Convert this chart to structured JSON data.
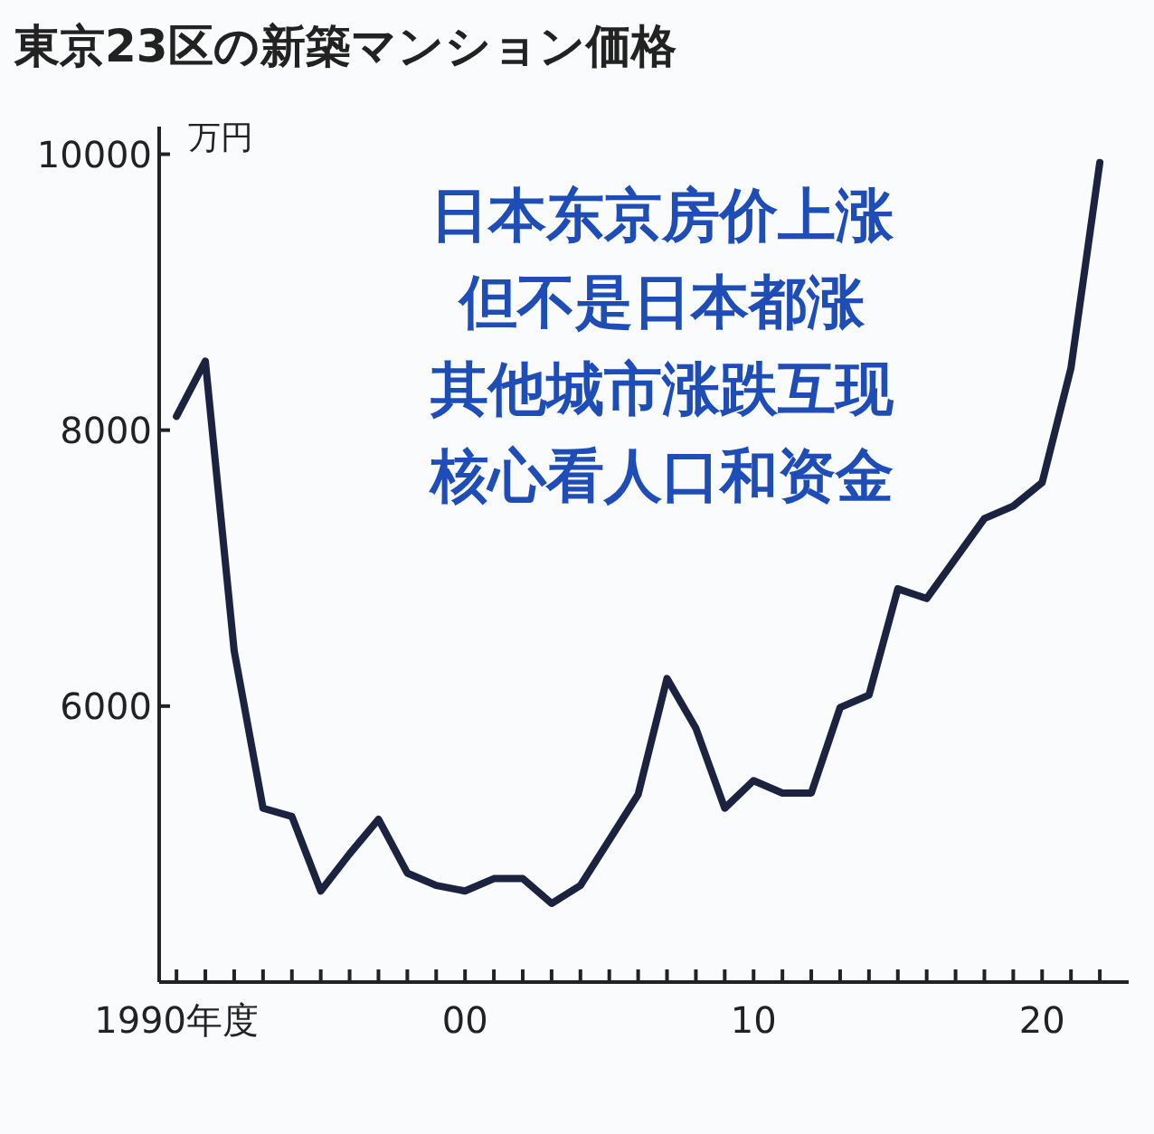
{
  "chart_data": {
    "type": "line",
    "title": "東京23区の新築マンション価格",
    "ylabel": "万円",
    "annotations": [
      "日本东京房价上涨",
      "但不是日本都涨",
      "其他城市涨跌互现",
      "核心看人口和资金"
    ],
    "x": [
      1990,
      1991,
      1992,
      1993,
      1994,
      1995,
      1996,
      1997,
      1998,
      1999,
      2000,
      2001,
      2002,
      2003,
      2004,
      2005,
      2006,
      2007,
      2008,
      2009,
      2010,
      2011,
      2012,
      2013,
      2014,
      2015,
      2016,
      2017,
      2018,
      2019,
      2020,
      2021,
      2022
    ],
    "series": [
      {
        "color": "#1c2340",
        "values": [
          8100,
          8500,
          6400,
          5260,
          5200,
          4660,
          4930,
          5180,
          4790,
          4700,
          4660,
          4750,
          4750,
          4570,
          4700,
          5030,
          5360,
          6200,
          5840,
          5260,
          5460,
          5370,
          5370,
          5990,
          6080,
          6850,
          6780,
          7070,
          7360,
          7450,
          7620,
          8450,
          9940
        ]
      }
    ],
    "xlim": [
      1989.4,
      2023
    ],
    "ylim": [
      4000,
      10200
    ],
    "xticks": [
      {
        "value": 1990,
        "label": "1990年度"
      },
      {
        "value": 1991,
        "label": null
      },
      {
        "value": 1992,
        "label": null
      },
      {
        "value": 1993,
        "label": null
      },
      {
        "value": 1994,
        "label": null
      },
      {
        "value": 1995,
        "label": null
      },
      {
        "value": 1996,
        "label": null
      },
      {
        "value": 1997,
        "label": null
      },
      {
        "value": 1998,
        "label": null
      },
      {
        "value": 1999,
        "label": null
      },
      {
        "value": 2000,
        "label": "00"
      },
      {
        "value": 2001,
        "label": null
      },
      {
        "value": 2002,
        "label": null
      },
      {
        "value": 2003,
        "label": null
      },
      {
        "value": 2004,
        "label": null
      },
      {
        "value": 2005,
        "label": null
      },
      {
        "value": 2006,
        "label": null
      },
      {
        "value": 2007,
        "label": null
      },
      {
        "value": 2008,
        "label": null
      },
      {
        "value": 2009,
        "label": null
      },
      {
        "value": 2010,
        "label": "10"
      },
      {
        "value": 2011,
        "label": null
      },
      {
        "value": 2012,
        "label": null
      },
      {
        "value": 2013,
        "label": null
      },
      {
        "value": 2014,
        "label": null
      },
      {
        "value": 2015,
        "label": null
      },
      {
        "value": 2016,
        "label": null
      },
      {
        "value": 2017,
        "label": null
      },
      {
        "value": 2018,
        "label": null
      },
      {
        "value": 2019,
        "label": null
      },
      {
        "value": 2020,
        "label": "20"
      },
      {
        "value": 2021,
        "label": null
      },
      {
        "value": 2022,
        "label": null
      }
    ],
    "yticks": [
      6000,
      8000,
      10000
    ],
    "grid": false,
    "marker": "none",
    "line_style": "solid"
  }
}
